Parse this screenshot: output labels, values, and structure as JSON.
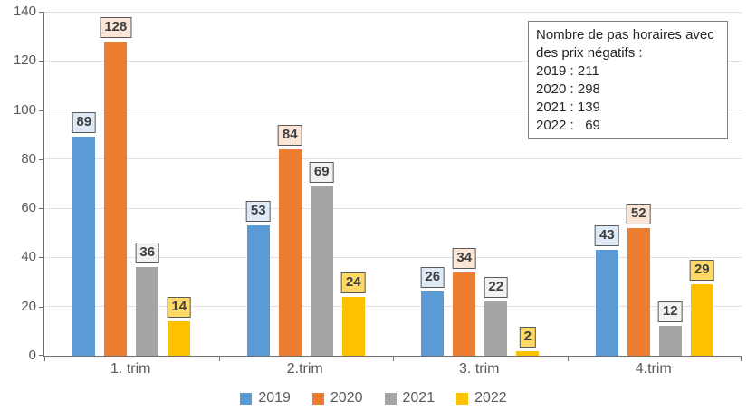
{
  "chart_data": {
    "type": "bar",
    "title": "",
    "xlabel": "",
    "ylabel": "",
    "categories": [
      "1. trim",
      "2.trim",
      "3. trim",
      "4.trim"
    ],
    "series": [
      {
        "name": "2019",
        "color": "#5B9BD5",
        "label_bg": "#DEEAF6",
        "values": [
          89,
          53,
          26,
          43
        ]
      },
      {
        "name": "2020",
        "color": "#ED7D31",
        "label_bg": "#FBE5D6",
        "values": [
          128,
          84,
          34,
          52
        ]
      },
      {
        "name": "2021",
        "color": "#A5A5A5",
        "label_bg": "#F2F2F2",
        "values": [
          36,
          69,
          22,
          12
        ]
      },
      {
        "name": "2022",
        "color": "#FFC000",
        "label_bg": "#FFD966",
        "values": [
          14,
          24,
          2,
          29
        ]
      }
    ],
    "ylim": [
      0,
      140
    ],
    "yticks": [
      0,
      20,
      40,
      60,
      80,
      100,
      120,
      140
    ],
    "grid": true,
    "legend_position": "bottom",
    "colors": {
      "axis": "#6E6E6E",
      "gridline": "#E2E2E2",
      "tick_text": "#595959",
      "data_label_text": "#3F3F3F",
      "data_label_border": "#595959"
    }
  },
  "annotation_box": {
    "lines": [
      "Nombre de pas horaires avec",
      "des prix négatifs :",
      "2019 : 211",
      "2020 : 298",
      "2021 : 139",
      "2022 :   69"
    ]
  }
}
